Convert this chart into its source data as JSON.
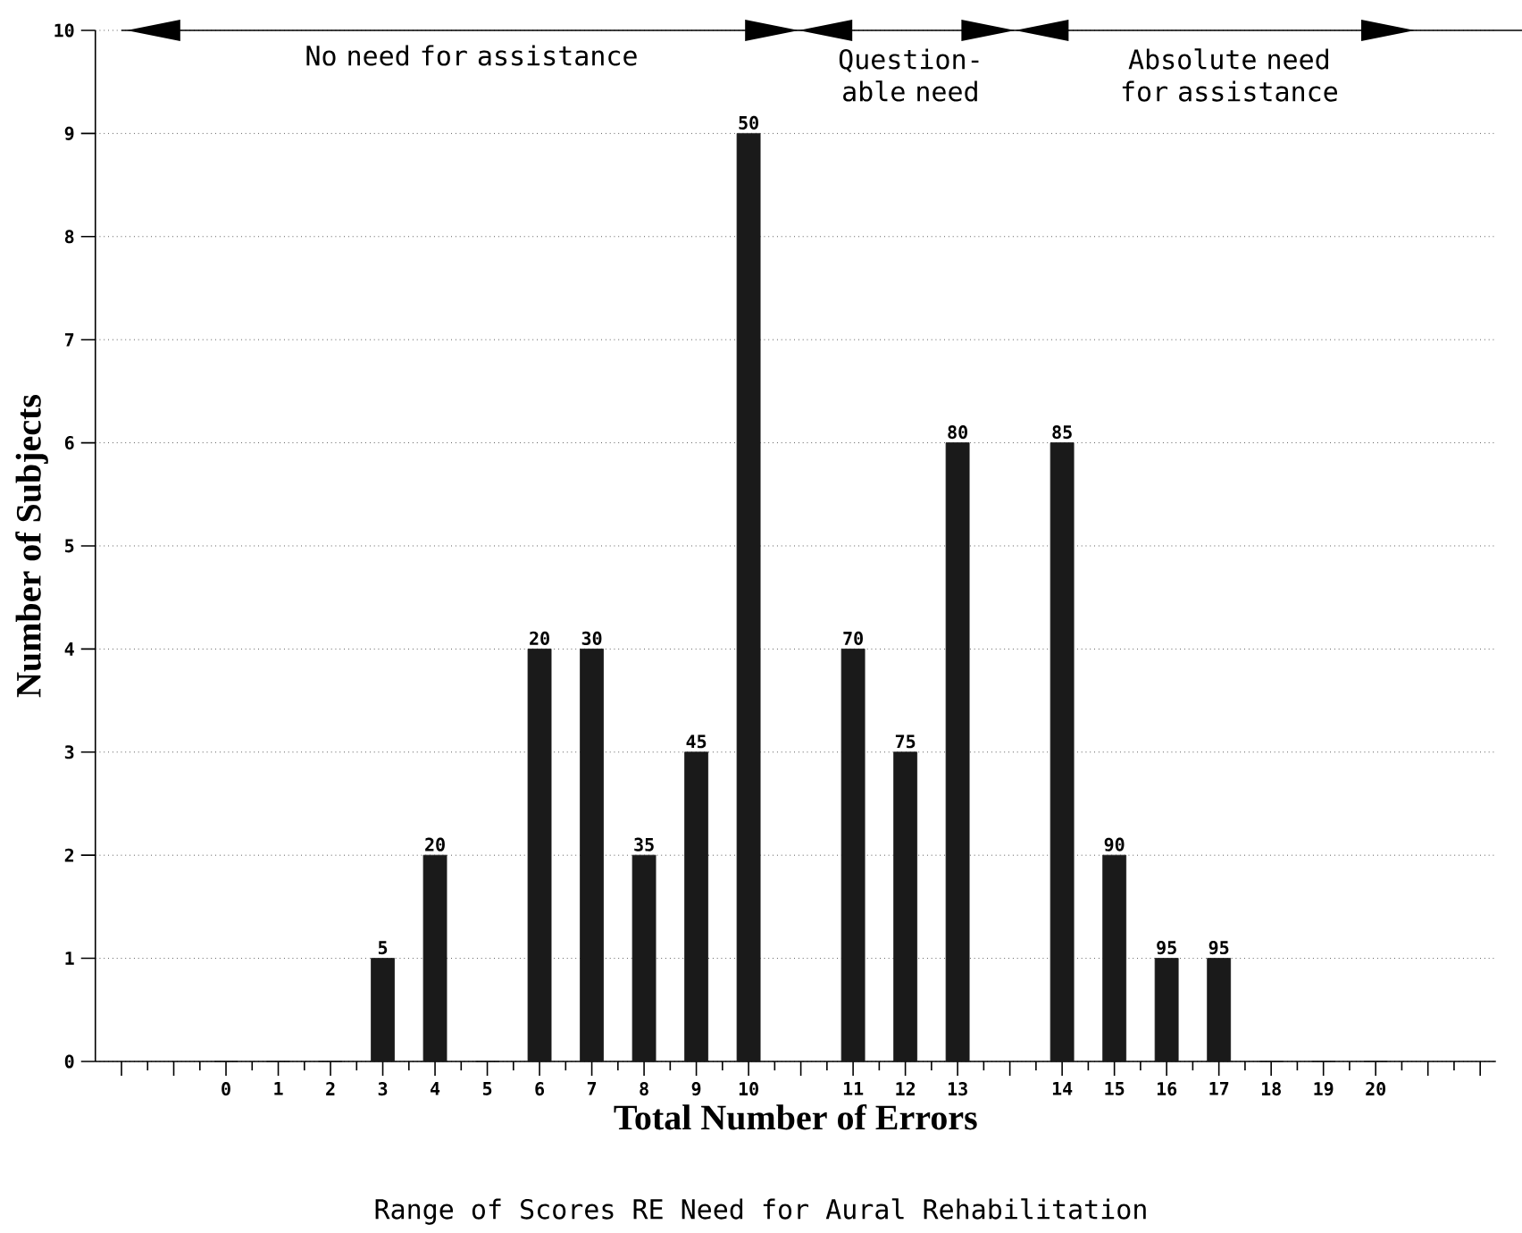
{
  "chart_data": {
    "type": "bar",
    "xlabel": "Total Number of Errors",
    "ylabel": "Number of Subjects",
    "categories": [
      null,
      null,
      "0",
      "1",
      "2",
      "3",
      "4",
      "5",
      "6",
      "7",
      "8",
      "9",
      "10",
      null,
      "11",
      "12",
      "13",
      null,
      "14",
      "15",
      "16",
      "17",
      "18",
      "19",
      "20",
      null,
      null
    ],
    "values": [
      null,
      null,
      0,
      0,
      0,
      1,
      2,
      0,
      4,
      4,
      2,
      3,
      9,
      null,
      4,
      3,
      6,
      null,
      6,
      2,
      1,
      1,
      0,
      0,
      0,
      null,
      null
    ],
    "color": "#1a1a1a",
    "ylim": [
      0,
      10
    ],
    "yticks": [
      0,
      1,
      2,
      3,
      4,
      5,
      6,
      7,
      8,
      9,
      10
    ],
    "grid": "y",
    "annotations": [
      "No need for assistance",
      "Question-able need",
      "Absolute need for assistance",
      "Range of Scores RE Need for Aural Rehabilitation",
      {
        "text": "5",
        "x": "3",
        "y": 1
      },
      {
        "text": "20",
        "x": "4",
        "y": 2
      },
      {
        "text": "20",
        "x": "6",
        "y": 4
      },
      {
        "text": "30",
        "x": "7",
        "y": 4
      },
      {
        "text": "35",
        "x": "8",
        "y": 2
      },
      {
        "text": "45",
        "x": "9",
        "y": 3
      },
      {
        "text": "50",
        "x": "10",
        "y": 9
      },
      {
        "text": "70",
        "x": "11",
        "y": 4
      },
      {
        "text": "75",
        "x": "12",
        "y": 3
      },
      {
        "text": "80",
        "x": "13",
        "y": 6
      },
      {
        "text": "85",
        "x": "14",
        "y": 6
      },
      {
        "text": "90",
        "x": "15",
        "y": 2
      },
      {
        "text": "95",
        "x": "16",
        "y": 1
      },
      {
        "text": "95",
        "x": "17",
        "y": 1
      }
    ]
  }
}
